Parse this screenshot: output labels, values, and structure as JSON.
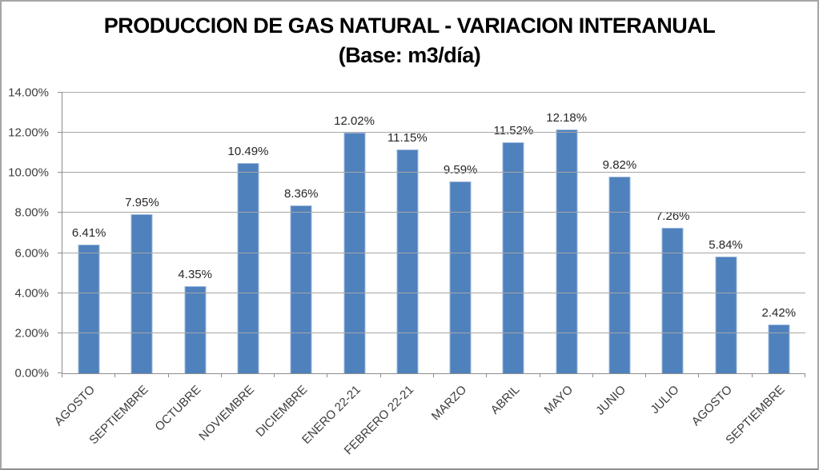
{
  "chart_data": {
    "type": "bar",
    "title": "PRODUCCION DE GAS NATURAL - VARIACION INTERANUAL",
    "subtitle": "(Base: m3/día)",
    "categories": [
      "AGOSTO",
      "SEPTIEMBRE",
      "OCTUBRE",
      "NOVIEMBRE",
      "DICIEMBRE",
      "ENERO 22-21",
      "FEBRERO 22-21",
      "MARZO",
      "ABRIL",
      "MAYO",
      "JUNIO",
      "JULIO",
      "AGOSTO",
      "SEPTIEMBRE"
    ],
    "values": [
      6.41,
      7.95,
      4.35,
      10.49,
      8.36,
      12.02,
      11.15,
      9.59,
      11.52,
      12.18,
      9.82,
      7.26,
      5.84,
      2.42
    ],
    "data_labels": [
      "6.41%",
      "7.95%",
      "4.35%",
      "10.49%",
      "8.36%",
      "12.02%",
      "11.15%",
      "9.59%",
      "11.52%",
      "12.18%",
      "9.82%",
      "7.26%",
      "5.84%",
      "2.42%"
    ],
    "y_ticks": [
      "0.00%",
      "2.00%",
      "4.00%",
      "6.00%",
      "8.00%",
      "10.00%",
      "12.00%",
      "14.00%"
    ],
    "ylim": [
      0,
      14
    ],
    "y_step": 2,
    "grid": true,
    "legend": "none",
    "colors": {
      "bar_fill": "#4F81BD",
      "bar_border": "#9DB8DC",
      "gridline": "#A6A6A6",
      "axis": "#8C8C8C",
      "text": "#3D3D3D",
      "title_text": "#000000",
      "chart_border": "#A6A6A6",
      "background": "#FFFFFF"
    }
  }
}
